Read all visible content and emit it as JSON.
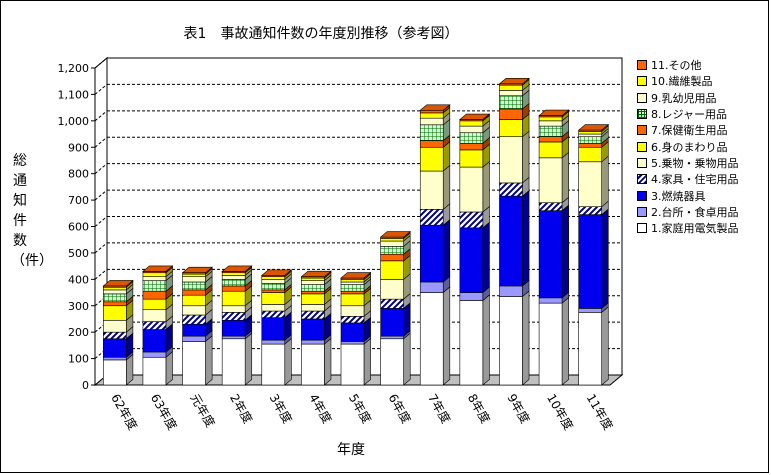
{
  "chart_data": {
    "type": "bar",
    "stacked": true,
    "title": "表1　事故通知件数の年度別推移（参考図）",
    "xlabel": "年度",
    "ylabel": "総通知件数（件）",
    "ylim": [
      0,
      1200
    ],
    "yticks": [
      0,
      100,
      200,
      300,
      400,
      500,
      600,
      700,
      800,
      900,
      1000,
      1100,
      1200
    ],
    "ytick_labels": [
      "0",
      "100",
      "200",
      "300",
      "400",
      "500",
      "600",
      "700",
      "800",
      "900",
      "1,000",
      "1,100",
      "1,200"
    ],
    "grid": "dashed-horizontal",
    "legend_position": "right",
    "categories": [
      "62年度",
      "63年度",
      "元年度",
      "2年度",
      "3年度",
      "4年度",
      "5年度",
      "6年度",
      "7年度",
      "8年度",
      "9年度",
      "10年度",
      "11年度"
    ],
    "series": [
      {
        "name": "1.家庭用電気製品",
        "color": "#ffffff",
        "pattern": "plain",
        "values": [
          95,
          105,
          165,
          175,
          155,
          155,
          155,
          175,
          350,
          320,
          335,
          310,
          275
        ]
      },
      {
        "name": "2.台所・食卓用品",
        "color": "#9999ff",
        "pattern": "plain",
        "values": [
          10,
          20,
          20,
          10,
          15,
          15,
          10,
          10,
          40,
          30,
          40,
          20,
          15
        ]
      },
      {
        "name": "3.燃焼器具",
        "color": "#0000ee",
        "pattern": "plain",
        "values": [
          70,
          85,
          45,
          60,
          85,
          80,
          70,
          105,
          215,
          245,
          340,
          330,
          355
        ]
      },
      {
        "name": "4.家具・住宅用品",
        "color": "#ffffff",
        "pattern": "diagonal",
        "values": [
          25,
          30,
          35,
          30,
          25,
          30,
          25,
          35,
          60,
          60,
          50,
          30,
          30
        ]
      },
      {
        "name": "5.乗物・乗物用品",
        "color": "#ffffcc",
        "pattern": "plain",
        "values": [
          45,
          45,
          35,
          25,
          25,
          25,
          40,
          75,
          145,
          170,
          175,
          170,
          170
        ]
      },
      {
        "name": "6.身のまわり品",
        "color": "#ffff00",
        "pattern": "plain",
        "values": [
          55,
          40,
          40,
          55,
          45,
          40,
          45,
          70,
          90,
          65,
          65,
          60,
          55
        ]
      },
      {
        "name": "7.保健衛生用品",
        "color": "#ff6600",
        "pattern": "plain",
        "values": [
          15,
          30,
          20,
          20,
          10,
          10,
          10,
          25,
          25,
          25,
          40,
          20,
          15
        ]
      },
      {
        "name": "8.レジャー用品",
        "color": "#ccffcc",
        "pattern": "grid",
        "values": [
          30,
          40,
          30,
          25,
          25,
          25,
          25,
          30,
          60,
          40,
          50,
          40,
          25
        ]
      },
      {
        "name": "9.乳幼児用品",
        "color": "#ffffcc",
        "pattern": "plain",
        "values": [
          15,
          15,
          20,
          15,
          15,
          15,
          10,
          20,
          25,
          25,
          20,
          20,
          10
        ]
      },
      {
        "name": "10.繊維製品",
        "color": "#ffff00",
        "pattern": "plain",
        "values": [
          10,
          15,
          10,
          10,
          10,
          10,
          10,
          10,
          20,
          20,
          20,
          15,
          10
        ]
      },
      {
        "name": "11.その他",
        "color": "#ff6600",
        "pattern": "plain",
        "values": [
          5,
          5,
          5,
          5,
          5,
          5,
          5,
          5,
          10,
          5,
          5,
          5,
          5
        ]
      }
    ]
  }
}
